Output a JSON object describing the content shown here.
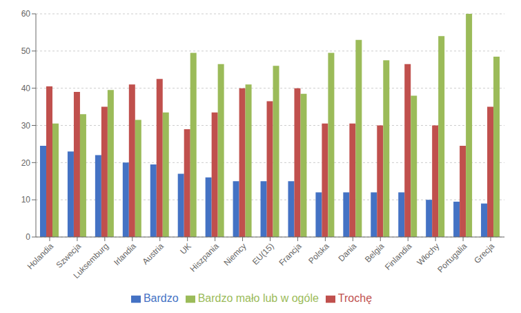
{
  "chart_data": {
    "type": "bar",
    "categories": [
      "Holandia",
      "Szwecja",
      "Luksemburg",
      "Irlandia",
      "Austria",
      "UK",
      "Hiszpania",
      "Niemcy",
      "EU(15)",
      "Francja",
      "Polska",
      "Dania",
      "Belgia",
      "Finlandia",
      "Włochy",
      "Portugalia",
      "Grecja"
    ],
    "series": [
      {
        "name": "Bardzo",
        "color": "#4472C4",
        "values": [
          24.5,
          23,
          22,
          20,
          19.5,
          17,
          16,
          15,
          15,
          15,
          12,
          12,
          12,
          12,
          10,
          9.5,
          9
        ]
      },
      {
        "name": "Trochę",
        "color": "#C0504D",
        "values": [
          40.5,
          39,
          35,
          41,
          42.5,
          29,
          33.5,
          40,
          36.5,
          40,
          30.5,
          30.5,
          30,
          46.5,
          30,
          24.5,
          35
        ]
      },
      {
        "name": "Bardzo mało lub w ogóle",
        "color": "#9BBB59",
        "values": [
          30.5,
          33,
          39.5,
          31.5,
          33.5,
          49.5,
          46.5,
          41,
          46,
          38.5,
          49.5,
          53,
          47.5,
          38,
          54,
          60,
          48.5
        ]
      }
    ],
    "ylim": [
      0,
      60
    ],
    "yticks": [
      0,
      10,
      20,
      30,
      40,
      50,
      60
    ],
    "grid": true,
    "legend": "bottom"
  }
}
